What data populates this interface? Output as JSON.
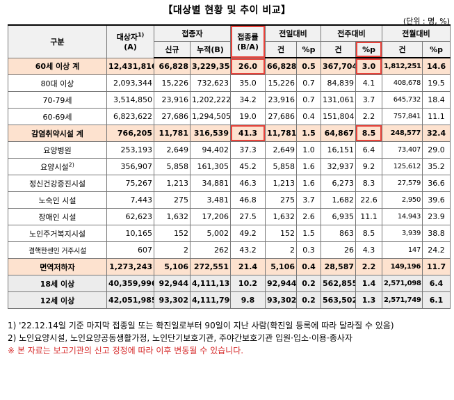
{
  "title": "【대상별 현황 및 추이 비교】",
  "unit": "(단위 : 명, %)",
  "header": {
    "gubun": "구분",
    "target": "대상자",
    "target_sup": "1)",
    "target_sub": "(A)",
    "vaccinated": "접종자",
    "new": "신규",
    "cumulative": "누적(B)",
    "rate": "접종률",
    "rate_sub": "(B/A)",
    "prev_day": "전일대비",
    "prev_week": "전주대비",
    "prev_month": "전월대비",
    "count": "건",
    "pctp": "%p"
  },
  "rows": [
    {
      "label": "60세 이상 계",
      "target": "12,431,816",
      "new": "66,828",
      "cum": "3,229,350",
      "rate": "26.0",
      "d_cnt": "66,828",
      "d_p": "0.5",
      "w_cnt": "367,704",
      "w_p": "3.0",
      "m_cnt": "1,812,251",
      "m_p": "14.6"
    },
    {
      "label": "80대 이상",
      "target": "2,093,344",
      "new": "15,226",
      "cum": "732,623",
      "rate": "35.0",
      "d_cnt": "15,226",
      "d_p": "0.7",
      "w_cnt": "84,839",
      "w_p": "4.1",
      "m_cnt": "408,678",
      "m_p": "19.5"
    },
    {
      "label": "70-79세",
      "target": "3,514,850",
      "new": "23,916",
      "cum": "1,202,222",
      "rate": "34.2",
      "d_cnt": "23,916",
      "d_p": "0.7",
      "w_cnt": "131,061",
      "w_p": "3.7",
      "m_cnt": "645,732",
      "m_p": "18.4"
    },
    {
      "label": "60-69세",
      "target": "6,823,622",
      "new": "27,686",
      "cum": "1,294,505",
      "rate": "19.0",
      "d_cnt": "27,686",
      "d_p": "0.4",
      "w_cnt": "151,804",
      "w_p": "2.2",
      "m_cnt": "757,841",
      "m_p": "11.1"
    },
    {
      "label": "감염취약시설 계",
      "target": "766,205",
      "new": "11,781",
      "cum": "316,539",
      "rate": "41.3",
      "d_cnt": "11,781",
      "d_p": "1.5",
      "w_cnt": "64,867",
      "w_p": "8.5",
      "m_cnt": "248,577",
      "m_p": "32.4"
    },
    {
      "label": "요양병원",
      "target": "253,193",
      "new": "2,649",
      "cum": "94,402",
      "rate": "37.3",
      "d_cnt": "2,649",
      "d_p": "1.0",
      "w_cnt": "16,151",
      "w_p": "6.4",
      "m_cnt": "73,407",
      "m_p": "29.0"
    },
    {
      "label": "요양시설",
      "label_sup": "2)",
      "target": "356,907",
      "new": "5,858",
      "cum": "161,305",
      "rate": "45.2",
      "d_cnt": "5,858",
      "d_p": "1.6",
      "w_cnt": "32,937",
      "w_p": "9.2",
      "m_cnt": "125,612",
      "m_p": "35.2"
    },
    {
      "label": "정신건강증진시설",
      "target": "75,267",
      "new": "1,213",
      "cum": "34,881",
      "rate": "46.3",
      "d_cnt": "1,213",
      "d_p": "1.6",
      "w_cnt": "6,273",
      "w_p": "8.3",
      "m_cnt": "27,579",
      "m_p": "36.6"
    },
    {
      "label": "노숙인 시설",
      "target": "7,443",
      "new": "275",
      "cum": "3,481",
      "rate": "46.8",
      "d_cnt": "275",
      "d_p": "3.7",
      "w_cnt": "1,682",
      "w_p": "22.6",
      "m_cnt": "2,950",
      "m_p": "39.6"
    },
    {
      "label": "장애인 시설",
      "target": "62,623",
      "new": "1,632",
      "cum": "17,206",
      "rate": "27.5",
      "d_cnt": "1,632",
      "d_p": "2.6",
      "w_cnt": "6,935",
      "w_p": "11.1",
      "m_cnt": "14,943",
      "m_p": "23.9"
    },
    {
      "label": "노인주거복지시설",
      "target": "10,165",
      "new": "152",
      "cum": "5,002",
      "rate": "49.2",
      "d_cnt": "152",
      "d_p": "1.5",
      "w_cnt": "863",
      "w_p": "8.5",
      "m_cnt": "3,939",
      "m_p": "38.8"
    },
    {
      "label": "결핵한센인 거주시설",
      "target": "607",
      "new": "2",
      "cum": "262",
      "rate": "43.2",
      "d_cnt": "2",
      "d_p": "0.3",
      "w_cnt": "26",
      "w_p": "4.3",
      "m_cnt": "147",
      "m_p": "24.2"
    },
    {
      "label": "면역저하자",
      "target": "1,273,243",
      "new": "5,106",
      "cum": "272,551",
      "rate": "21.4",
      "d_cnt": "5,106",
      "d_p": "0.4",
      "w_cnt": "28,587",
      "w_p": "2.2",
      "m_cnt": "149,196",
      "m_p": "11.7"
    },
    {
      "label": "18세 이상",
      "target": "40,359,996",
      "new": "92,944",
      "cum": "4,111,138",
      "rate": "10.2",
      "d_cnt": "92,944",
      "d_p": "0.2",
      "w_cnt": "562,855",
      "w_p": "1.4",
      "m_cnt": "2,571,098",
      "m_p": "6.4"
    },
    {
      "label": "12세 이상",
      "target": "42,051,985",
      "new": "93,302",
      "cum": "4,111,790",
      "rate": "9.8",
      "d_cnt": "93,302",
      "d_p": "0.2",
      "w_cnt": "563,502",
      "w_p": "1.3",
      "m_cnt": "2,571,749",
      "m_p": "6.1"
    }
  ],
  "notes": [
    "1) '22.12.14일 기준 마지막 접종일 또는 확진일로부터 90일이 지난 사람(확진일 등록에 따라 달라질 수 있음)",
    "2) 노인요양시설, 노인요양공동생활가정, 노인단기보호기관, 주야간보호기관 입원·입소·이용·종사자",
    "※ 본 자료는 보고기관의 신고 정정에 따라 이후 변동될 수 있습니다."
  ],
  "colors": {
    "highlight": "#fde2cf",
    "gray": "#ececec",
    "red_box": "#e8423a",
    "warn_text": "#d62b2b"
  }
}
